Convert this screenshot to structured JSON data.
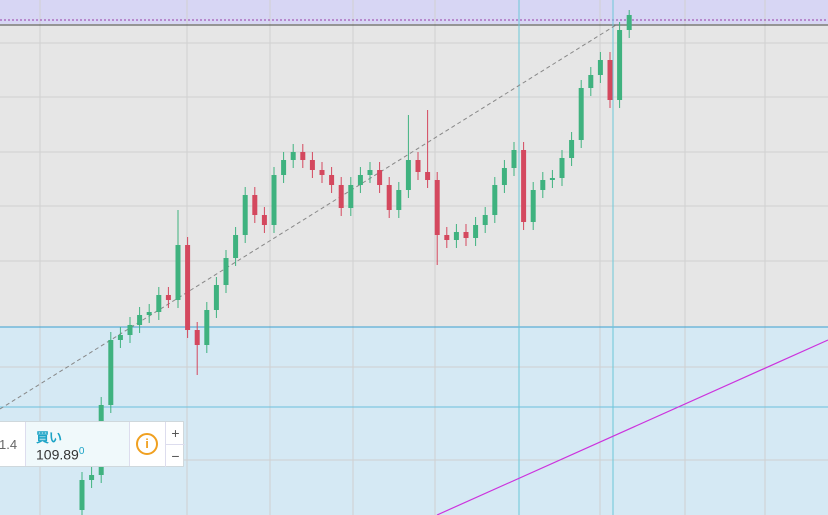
{
  "chart_data": {
    "type": "candlestick",
    "open": [
      5,
      35,
      40,
      110,
      175,
      180,
      190,
      200,
      203,
      220,
      215,
      270,
      185,
      170,
      205,
      230,
      257,
      280,
      320,
      300,
      290,
      340,
      355,
      363,
      355,
      345,
      340,
      330,
      307,
      330,
      340,
      345,
      330,
      305,
      325,
      355,
      343,
      335,
      280,
      275,
      283,
      277,
      290,
      300,
      330,
      347,
      365,
      293,
      325,
      335,
      337,
      357,
      375,
      427,
      440,
      455,
      415,
      485
    ],
    "high": [
      43,
      48,
      118,
      183,
      188,
      198,
      208,
      211,
      228,
      228,
      305,
      278,
      193,
      213,
      238,
      265,
      288,
      328,
      328,
      308,
      348,
      363,
      371,
      371,
      363,
      353,
      348,
      338,
      338,
      348,
      353,
      353,
      338,
      333,
      400,
      363,
      405,
      343,
      288,
      291,
      291,
      298,
      308,
      338,
      355,
      373,
      373,
      333,
      343,
      345,
      365,
      383,
      435,
      448,
      463,
      463,
      493,
      505
    ],
    "low": [
      0,
      27,
      32,
      102,
      167,
      172,
      182,
      192,
      195,
      207,
      207,
      177,
      140,
      162,
      197,
      222,
      249,
      272,
      292,
      282,
      282,
      332,
      347,
      347,
      337,
      332,
      322,
      299,
      299,
      322,
      332,
      322,
      297,
      297,
      317,
      335,
      327,
      250,
      267,
      267,
      269,
      269,
      282,
      292,
      322,
      339,
      285,
      285,
      317,
      327,
      329,
      349,
      367,
      419,
      432,
      407,
      407,
      477
    ],
    "close": [
      35,
      40,
      110,
      175,
      180,
      190,
      200,
      203,
      220,
      215,
      270,
      185,
      170,
      205,
      230,
      257,
      280,
      320,
      300,
      290,
      340,
      355,
      363,
      355,
      345,
      340,
      330,
      307,
      330,
      340,
      345,
      330,
      305,
      325,
      355,
      343,
      335,
      280,
      275,
      283,
      277,
      290,
      300,
      330,
      347,
      365,
      293,
      325,
      335,
      337,
      357,
      375,
      427,
      440,
      455,
      415,
      485,
      500
    ],
    "up_color": "#3fb27f",
    "down_color": "#d4485e",
    "ylim": [
      0,
      515
    ]
  },
  "order_widget": {
    "bid_fragment": "1.4",
    "side": "買い",
    "price": "109.89",
    "price_pip": "0",
    "plus": "+",
    "minus": "−"
  }
}
